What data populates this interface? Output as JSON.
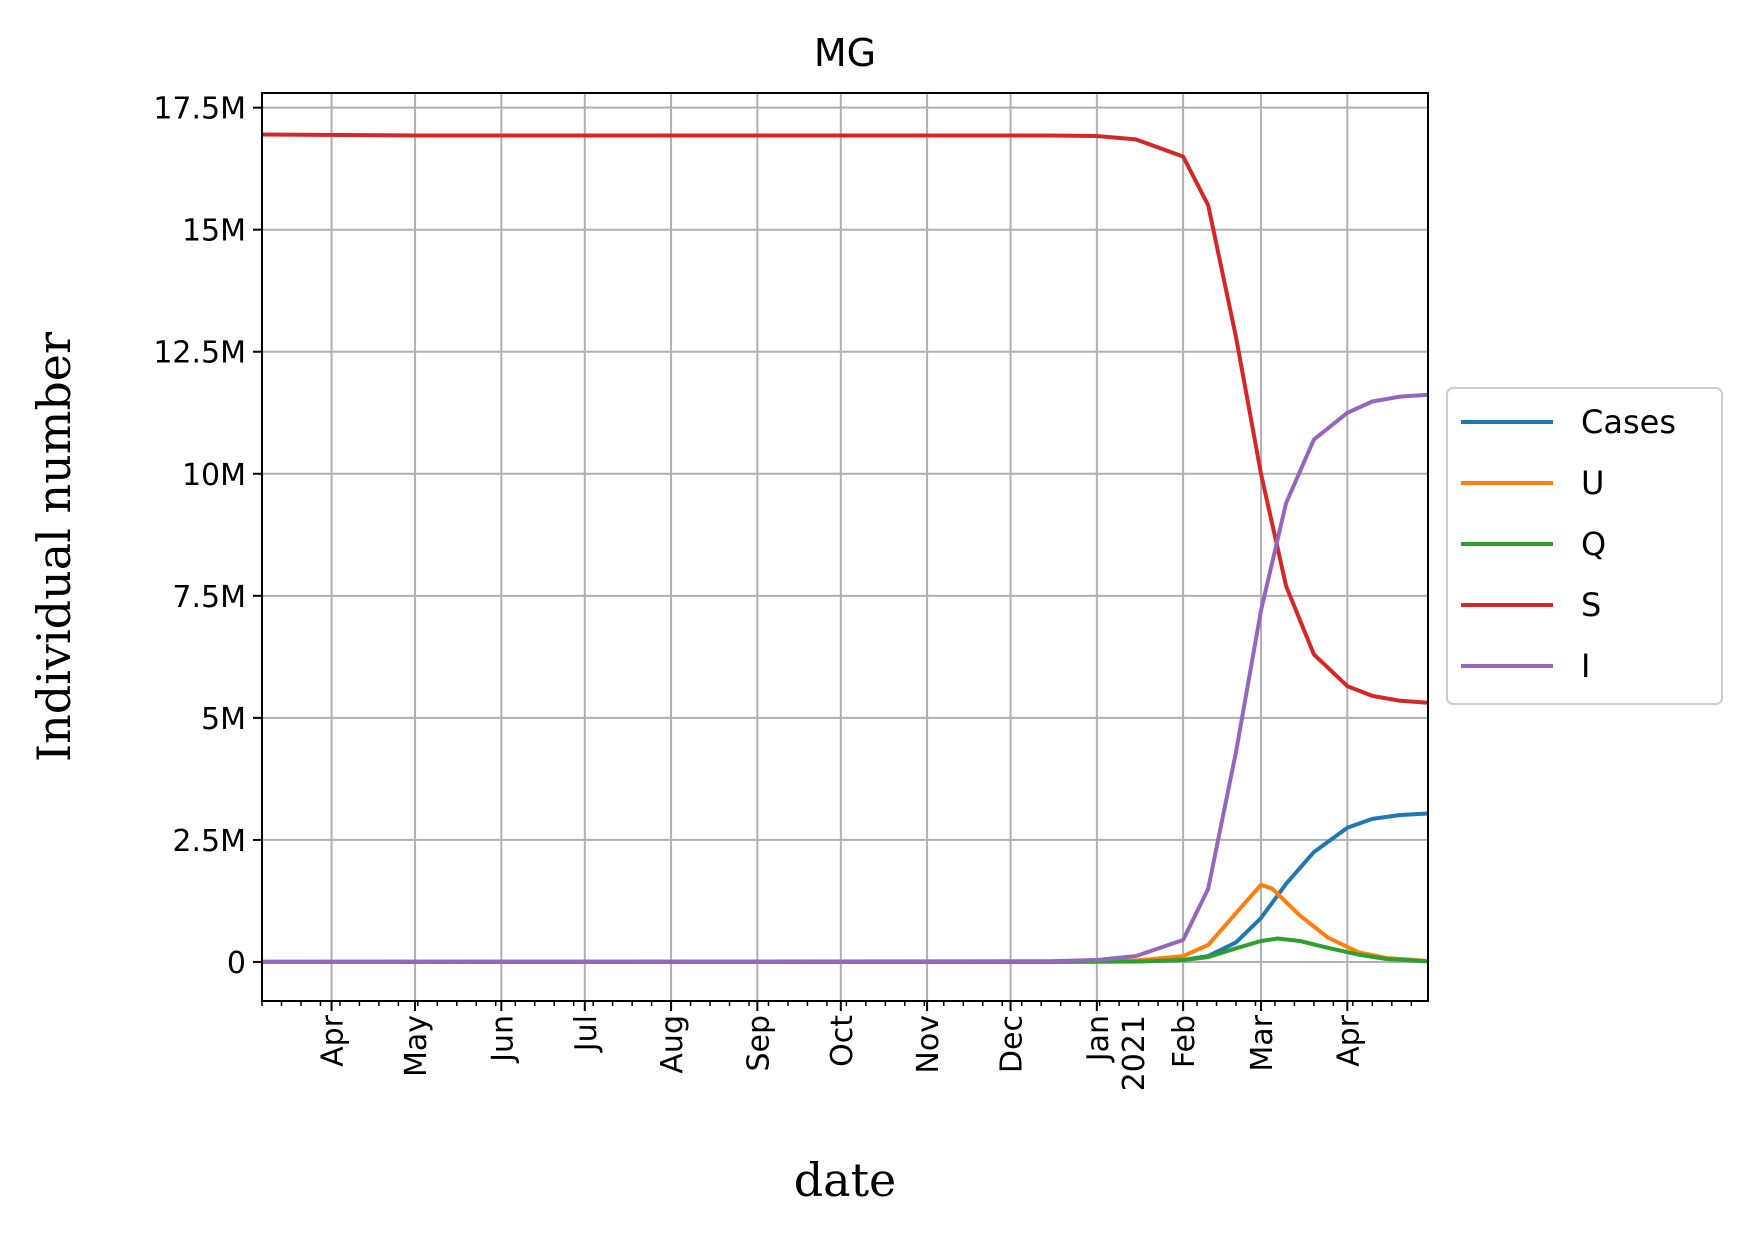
{
  "chart_data": {
    "type": "line",
    "title": "MG",
    "xlabel": "date",
    "ylabel": "Individual number",
    "x_range": [
      "2020-03-07",
      "2021-04-30"
    ],
    "ylim": [
      -800000,
      17800000
    ],
    "grid": true,
    "legend_position": "right",
    "y_ticks": [
      {
        "value": 0,
        "label": "0"
      },
      {
        "value": 2500000,
        "label": "2.5M"
      },
      {
        "value": 5000000,
        "label": "5M"
      },
      {
        "value": 7500000,
        "label": "7.5M"
      },
      {
        "value": 10000000,
        "label": "10M"
      },
      {
        "value": 12500000,
        "label": "12.5M"
      },
      {
        "value": 15000000,
        "label": "15M"
      },
      {
        "value": 17500000,
        "label": "17.5M"
      }
    ],
    "x_ticks": [
      {
        "date": "2020-04-01",
        "label": "Apr"
      },
      {
        "date": "2020-05-01",
        "label": "May"
      },
      {
        "date": "2020-06-01",
        "label": "Jun"
      },
      {
        "date": "2020-07-01",
        "label": "Jul"
      },
      {
        "date": "2020-08-01",
        "label": "Aug"
      },
      {
        "date": "2020-09-01",
        "label": "Sep"
      },
      {
        "date": "2020-10-01",
        "label": "Oct"
      },
      {
        "date": "2020-11-01",
        "label": "Nov"
      },
      {
        "date": "2020-12-01",
        "label": "Dec"
      },
      {
        "date": "2021-01-01",
        "label": "Jan\n2021"
      },
      {
        "date": "2021-02-01",
        "label": "Feb"
      },
      {
        "date": "2021-03-01",
        "label": "Mar"
      },
      {
        "date": "2021-04-01",
        "label": "Apr"
      }
    ],
    "series": [
      {
        "name": "Cases",
        "color": "#1f77b4",
        "points": [
          [
            "2020-03-07",
            0
          ],
          [
            "2020-12-15",
            2000
          ],
          [
            "2021-01-15",
            10000
          ],
          [
            "2021-02-01",
            40000
          ],
          [
            "2021-02-10",
            120000
          ],
          [
            "2021-02-20",
            400000
          ],
          [
            "2021-03-01",
            900000
          ],
          [
            "2021-03-10",
            1600000
          ],
          [
            "2021-03-20",
            2250000
          ],
          [
            "2021-04-01",
            2750000
          ],
          [
            "2021-04-10",
            2930000
          ],
          [
            "2021-04-20",
            3010000
          ],
          [
            "2021-04-30",
            3040000
          ]
        ]
      },
      {
        "name": "U",
        "color": "#ff7f0e",
        "points": [
          [
            "2020-03-07",
            0
          ],
          [
            "2020-12-15",
            5000
          ],
          [
            "2021-01-15",
            30000
          ],
          [
            "2021-02-01",
            120000
          ],
          [
            "2021-02-10",
            350000
          ],
          [
            "2021-02-20",
            1000000
          ],
          [
            "2021-03-01",
            1580000
          ],
          [
            "2021-03-05",
            1500000
          ],
          [
            "2021-03-15",
            950000
          ],
          [
            "2021-03-25",
            500000
          ],
          [
            "2021-04-05",
            200000
          ],
          [
            "2021-04-15",
            80000
          ],
          [
            "2021-04-30",
            20000
          ]
        ]
      },
      {
        "name": "Q",
        "color": "#2ca02c",
        "points": [
          [
            "2020-03-07",
            0
          ],
          [
            "2020-12-15",
            1000
          ],
          [
            "2021-01-15",
            10000
          ],
          [
            "2021-02-01",
            40000
          ],
          [
            "2021-02-10",
            100000
          ],
          [
            "2021-02-20",
            280000
          ],
          [
            "2021-03-01",
            430000
          ],
          [
            "2021-03-07",
            480000
          ],
          [
            "2021-03-15",
            430000
          ],
          [
            "2021-03-25",
            290000
          ],
          [
            "2021-04-05",
            150000
          ],
          [
            "2021-04-15",
            60000
          ],
          [
            "2021-04-30",
            15000
          ]
        ]
      },
      {
        "name": "S",
        "color": "#d62728",
        "points": [
          [
            "2020-03-07",
            16950000
          ],
          [
            "2020-05-01",
            16930000
          ],
          [
            "2020-09-01",
            16930000
          ],
          [
            "2020-12-15",
            16930000
          ],
          [
            "2021-01-01",
            16920000
          ],
          [
            "2021-01-15",
            16850000
          ],
          [
            "2021-02-01",
            16500000
          ],
          [
            "2021-02-10",
            15500000
          ],
          [
            "2021-02-20",
            12800000
          ],
          [
            "2021-03-01",
            10000000
          ],
          [
            "2021-03-10",
            7700000
          ],
          [
            "2021-03-20",
            6300000
          ],
          [
            "2021-04-01",
            5650000
          ],
          [
            "2021-04-10",
            5450000
          ],
          [
            "2021-04-20",
            5350000
          ],
          [
            "2021-04-30",
            5310000
          ]
        ]
      },
      {
        "name": "I",
        "color": "#9467bd",
        "points": [
          [
            "2020-03-07",
            0
          ],
          [
            "2020-12-15",
            15000
          ],
          [
            "2021-01-01",
            40000
          ],
          [
            "2021-01-15",
            120000
          ],
          [
            "2021-02-01",
            450000
          ],
          [
            "2021-02-10",
            1500000
          ],
          [
            "2021-02-20",
            4300000
          ],
          [
            "2021-03-01",
            7200000
          ],
          [
            "2021-03-10",
            9400000
          ],
          [
            "2021-03-20",
            10700000
          ],
          [
            "2021-04-01",
            11250000
          ],
          [
            "2021-04-10",
            11480000
          ],
          [
            "2021-04-20",
            11580000
          ],
          [
            "2021-04-30",
            11620000
          ]
        ]
      }
    ]
  }
}
